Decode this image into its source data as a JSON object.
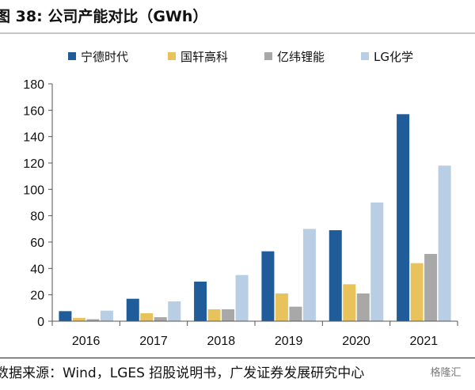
{
  "title": {
    "prefix": "图",
    "number": "38:",
    "text": "公司产能对比（GWh）"
  },
  "source": "数据来源：Wind，LGES 招股说明书，广发证券发展研究中心",
  "watermark": "格隆汇",
  "chart_data": {
    "type": "bar",
    "categories": [
      "2016",
      "2017",
      "2018",
      "2019",
      "2020",
      "2021"
    ],
    "series": [
      {
        "name": "宁德时代",
        "color": "#1f5c99",
        "values": [
          7.6,
          17,
          30,
          53,
          69,
          157
        ]
      },
      {
        "name": "国轩高科",
        "color": "#e8c25a",
        "values": [
          2.5,
          6,
          9,
          21,
          28,
          44
        ]
      },
      {
        "name": "亿纬锂能",
        "color": "#a8a8a8",
        "values": [
          1.5,
          3,
          9,
          11,
          21,
          51
        ]
      },
      {
        "name": "LG化学",
        "color": "#b9cde4",
        "values": [
          8,
          15,
          35,
          70,
          90,
          118
        ]
      }
    ],
    "ylim": [
      0,
      180
    ],
    "yticks": [
      0,
      20,
      40,
      60,
      80,
      100,
      120,
      140,
      160,
      180
    ],
    "title": "公司产能对比（GWh）",
    "xlabel": "",
    "ylabel": "",
    "legend": "top",
    "grid": false
  }
}
